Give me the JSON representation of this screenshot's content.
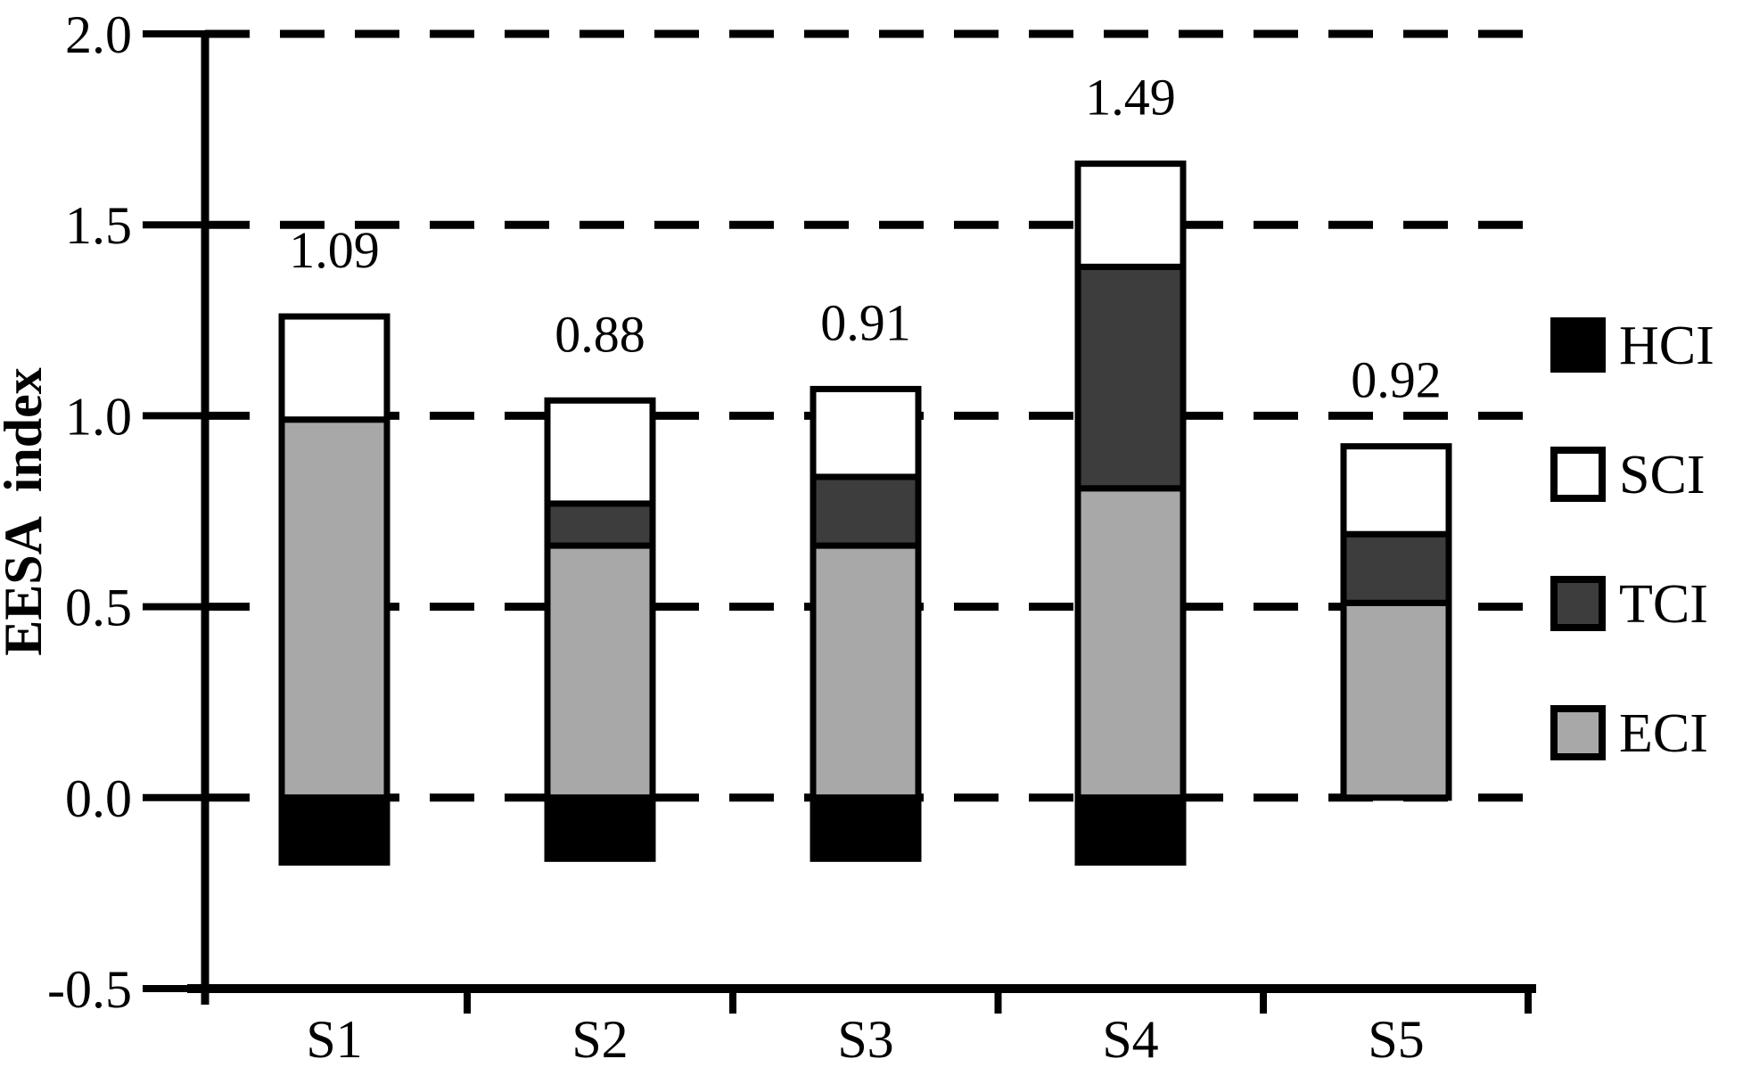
{
  "figure": {
    "background": "#ffffff"
  },
  "chart_data": {
    "type": "bar",
    "stacked": true,
    "title": "",
    "ylabel": "EESA  index",
    "xlabel": "",
    "categories": [
      "S1",
      "S2",
      "S3",
      "S4",
      "S5"
    ],
    "stack_order": [
      "ECI",
      "TCI",
      "SCI",
      "HCI"
    ],
    "series": [
      {
        "name": "HCI",
        "color": "#000000",
        "values": [
          -0.17,
          -0.16,
          -0.16,
          -0.17,
          0.0
        ]
      },
      {
        "name": "SCI",
        "color": "#ffffff",
        "values": [
          0.27,
          0.27,
          0.23,
          0.27,
          0.23
        ]
      },
      {
        "name": "TCI",
        "color": "#3d3d3d",
        "values": [
          0.0,
          0.11,
          0.18,
          0.58,
          0.18
        ]
      },
      {
        "name": "ECI",
        "color": "#a8a8a8",
        "values": [
          0.99,
          0.66,
          0.66,
          0.81,
          0.51
        ]
      }
    ],
    "bar_total_labels": [
      "1.09",
      "0.88",
      "0.91",
      "1.49",
      "0.92"
    ],
    "y_ticks": [
      {
        "value": 2.0,
        "label": "2.0",
        "gridline": true
      },
      {
        "value": 1.5,
        "label": "1.5",
        "gridline": true
      },
      {
        "value": 1.0,
        "label": "1.0",
        "gridline": true
      },
      {
        "value": 0.5,
        "label": "0.5",
        "gridline": true
      },
      {
        "value": 0.0,
        "label": "0.0",
        "gridline": true
      },
      {
        "value": -0.5,
        "label": "-0.5",
        "gridline": false
      }
    ],
    "ylim": [
      -0.5,
      2.0
    ],
    "grid": "dashed-horizontal",
    "legend_position": "right",
    "legend": [
      {
        "label": "HCI",
        "color": "#000000"
      },
      {
        "label": "SCI",
        "color": "#ffffff"
      },
      {
        "label": "TCI",
        "color": "#3d3d3d"
      },
      {
        "label": "ECI",
        "color": "#a8a8a8"
      }
    ]
  }
}
